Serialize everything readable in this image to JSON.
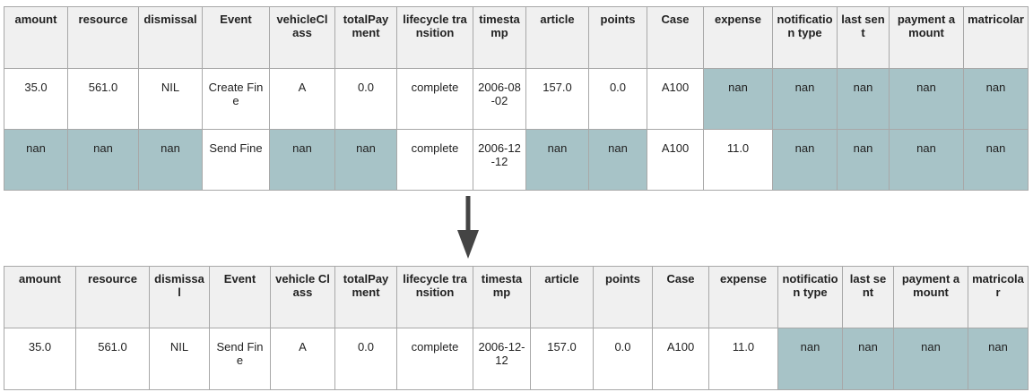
{
  "headers_top": [
    "amount",
    "resource",
    "dismissal",
    "Event",
    "vehicleClass",
    "totalPayment",
    "lifecycle transition",
    "timestamp",
    "article",
    "points",
    "Case",
    "expense",
    "notification type",
    "last sent",
    "payment amount",
    "matricolar"
  ],
  "rows_top": [
    [
      "35.0",
      "561.0",
      "NIL",
      "Create Fine",
      "A",
      "0.0",
      "complete",
      "2006-08-02",
      "157.0",
      "0.0",
      "A100",
      "nan",
      "nan",
      "nan",
      "nan",
      "nan"
    ],
    [
      "nan",
      "nan",
      "nan",
      "Send Fine",
      "nan",
      "nan",
      "complete",
      "2006-12-12",
      "nan",
      "nan",
      "A100",
      "11.0",
      "nan",
      "nan",
      "nan",
      "nan"
    ]
  ],
  "headers_bottom": [
    "amount",
    "resource",
    "dismissal",
    "Event",
    "vehicle Class",
    "totalPayment",
    "lifecycle transition",
    "timestamp",
    "article",
    "points",
    "Case",
    "expense",
    "notification type",
    "last sent",
    "payment amount",
    "matricolar"
  ],
  "rows_bottom": [
    [
      "35.0",
      "561.0",
      "NIL",
      "Send Fine",
      "A",
      "0.0",
      "complete",
      "2006-12-12",
      "157.0",
      "0.0",
      "A100",
      "11.0",
      "nan",
      "nan",
      "nan",
      "nan"
    ]
  ],
  "colors": {
    "header_bg": "#f0f0f0",
    "nan_cell": "#a7c3c7",
    "border": "#a8a8a8",
    "arrow": "#444444"
  },
  "arrow_icon": "down-arrow-icon"
}
